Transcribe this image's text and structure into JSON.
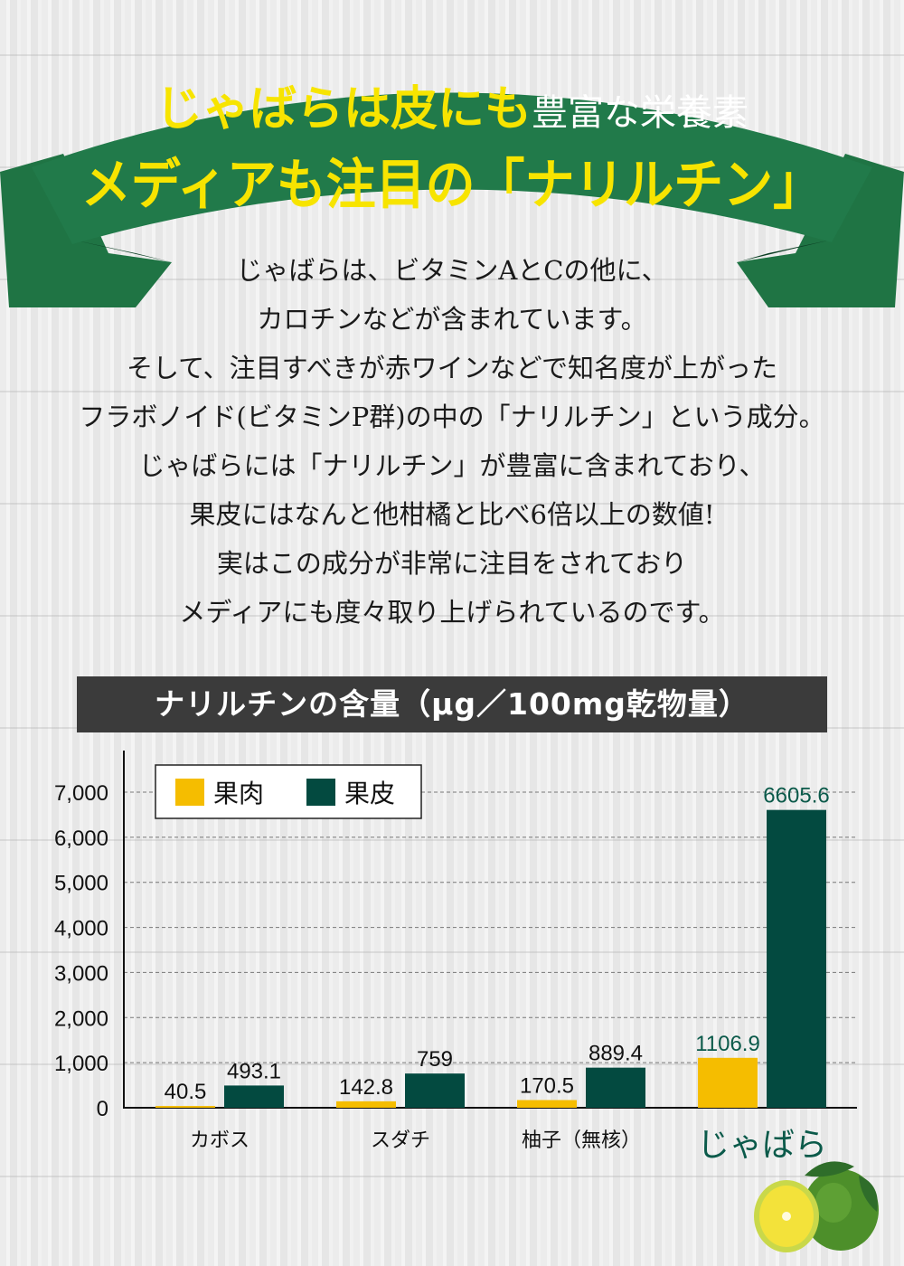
{
  "banner": {
    "line1_bold": "じゃばらは皮にも",
    "line1_light": "豊富な栄養素",
    "line2": "メディアも注目の「ナリルチン」",
    "ribbon_color": "#217a4a",
    "ribbon_dark": "#0f5a30",
    "text_color": "#f7e400"
  },
  "intro": {
    "lines": [
      "じゃばらは、ビタミンAとCの他に、",
      "カロチンなどが含まれています。",
      "そして、注目すべきが赤ワインなどで知名度が上がった",
      "フラボノイド(ビタミンP群)の中の「ナリルチン」という成分。",
      "じゃばらには「ナリルチン」が豊富に含まれており、",
      "果皮にはなんと他柑橘と比べ6倍以上の数値!",
      "実はこの成分が非常に注目をされており",
      "メディアにも度々取り上げられているのです。"
    ]
  },
  "chart_data": {
    "type": "bar",
    "title": "ナリルチンの含量（μg／100mg乾物量）",
    "categories": [
      "カボス",
      "スダチ",
      "柚子（無核）",
      "じゃばら"
    ],
    "series": [
      {
        "name": "果肉",
        "values": [
          40.5,
          142.8,
          170.5,
          1106.9
        ],
        "labels": [
          "40.5",
          "142.8",
          "170.5",
          "1106.9"
        ],
        "color": "#f5bd00"
      },
      {
        "name": "果皮",
        "values": [
          493.1,
          759,
          889.4,
          6605.6
        ],
        "labels": [
          "493.1",
          "759",
          "889.4",
          "6605.6"
        ],
        "color": "#034a40"
      }
    ],
    "yticks": [
      "0",
      "1,000",
      "2,000",
      "3,000",
      "4,000",
      "5,000",
      "6,000",
      "7,000"
    ],
    "ylim": [
      0,
      7000
    ],
    "grid": true,
    "legend": "top-left",
    "highlight_category_color": "#0b5a4a"
  }
}
